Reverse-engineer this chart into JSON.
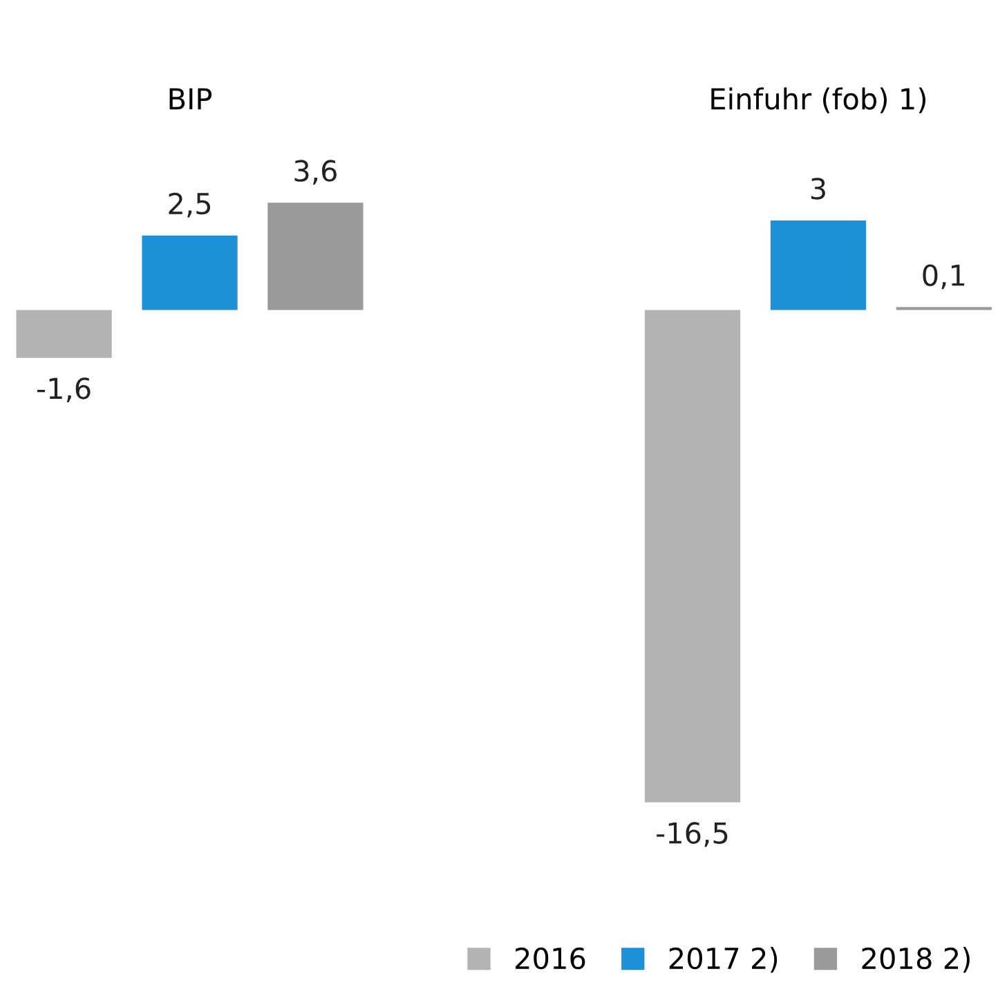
{
  "chart_data": {
    "type": "bar",
    "categories": [
      "BIP",
      "Einfuhr (fob) 1)"
    ],
    "series": [
      {
        "name": "2016",
        "color": "#b3b3b3",
        "values": [
          -1.6,
          -16.5
        ],
        "value_labels": [
          "-1,6",
          "-16,5"
        ]
      },
      {
        "name": "2017 2)",
        "color": "#1e90d8",
        "values": [
          2.5,
          3
        ],
        "value_labels": [
          "2,5",
          "3"
        ]
      },
      {
        "name": "2018 2)",
        "color": "#9a9a9a",
        "values": [
          3.6,
          0.1
        ],
        "value_labels": [
          "3,6",
          "0,1"
        ]
      }
    ],
    "legend": "bottom right",
    "grid": false
  }
}
